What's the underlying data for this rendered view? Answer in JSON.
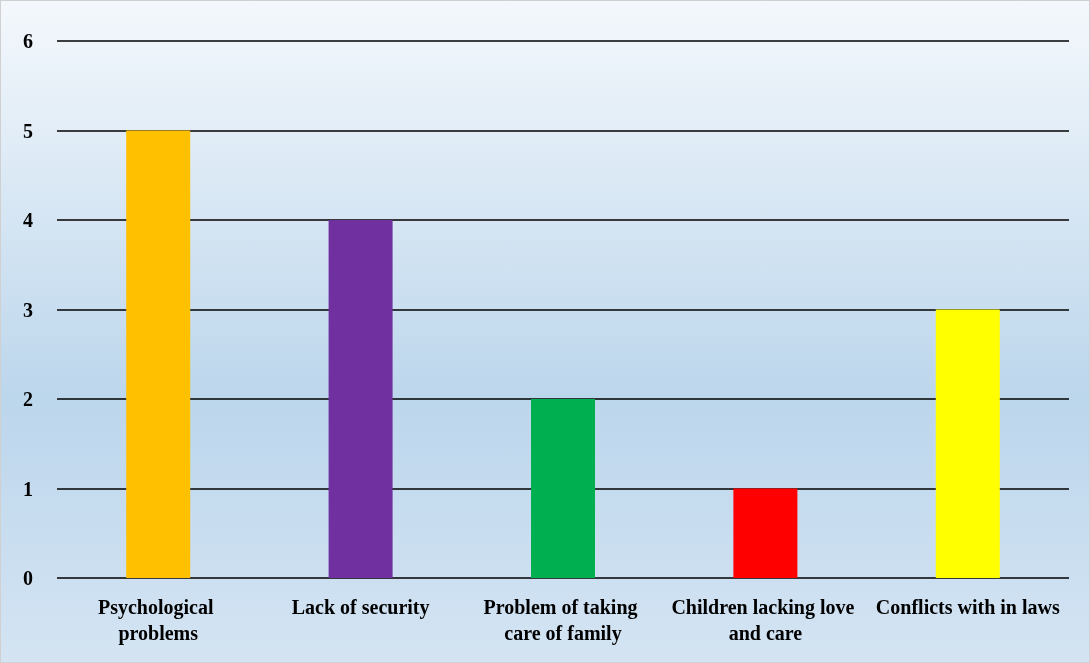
{
  "chart_data": {
    "type": "bar",
    "categories": [
      "Psychological problems",
      "Lack of security",
      "Problem of taking care of family",
      "Children lacking love and care",
      "Conflicts with in laws"
    ],
    "values": [
      5,
      4,
      2,
      1,
      3
    ],
    "colors": [
      "#ffc000",
      "#7030a0",
      "#00b050",
      "#ff0000",
      "#ffff00"
    ],
    "ylim": [
      0,
      6
    ],
    "yticks": [
      0,
      1,
      2,
      3,
      4,
      5,
      6
    ],
    "grid": "y"
  }
}
